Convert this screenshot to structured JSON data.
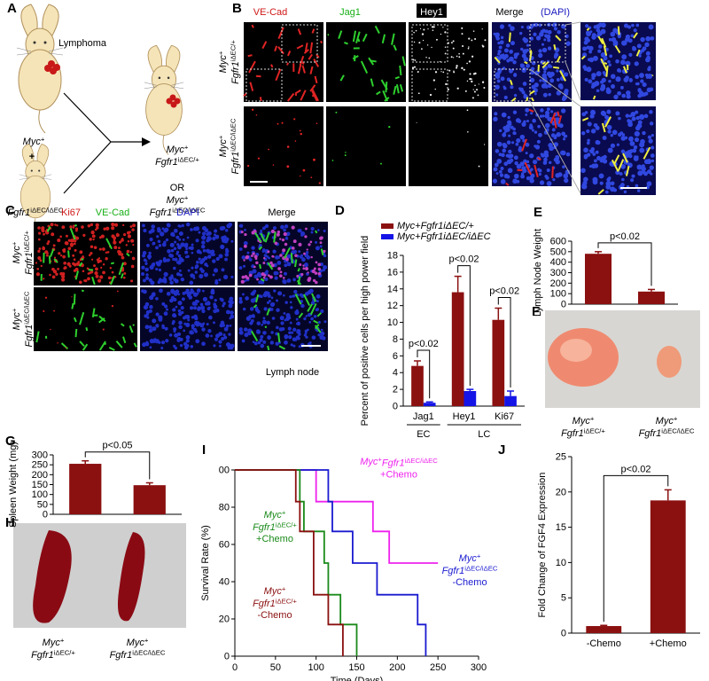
{
  "panel_labels": [
    "A",
    "B",
    "C",
    "D",
    "E",
    "F",
    "G",
    "H",
    "I",
    "J"
  ],
  "panel_a": {
    "tumor_label": "Lymphoma",
    "parent1": {
      "gene1": "Myc",
      "sup1": "+"
    },
    "plus": "+",
    "parent2": {
      "gene1": "Fgfr1",
      "sup1": "iΔEC/iΔEC"
    },
    "offspring1": {
      "gene1": "Myc",
      "sup1": "+",
      "gene2": "Fgfr1",
      "sup2": "iΔEC/+"
    },
    "or": "OR",
    "offspring2": {
      "gene1": "Myc",
      "sup1": "+",
      "gene2": "Fgfr1",
      "sup2": "iΔEC/iΔEC"
    }
  },
  "panel_b": {
    "headers": [
      "VE-Cad",
      "Jag1",
      "Hey1",
      "Merge"
    ],
    "dapi": "(DAPI)",
    "rows": [
      {
        "gene1": "Myc",
        "sup1": "+",
        "gene2": "Fgfr1",
        "sup2": "iΔEC/+"
      },
      {
        "gene1": "Myc",
        "sup1": "+",
        "gene2": "Fgfr1",
        "sup2": "iΔEC/iΔEC"
      }
    ]
  },
  "panel_c": {
    "headers": [
      "Ki67",
      "VE-Cad",
      "DAPI",
      "Merge"
    ],
    "rows": [
      {
        "gene1": "Myc",
        "sup1": "+",
        "gene2": "Fgfr1",
        "sup2": "iΔEC/+"
      },
      {
        "gene1": "Myc",
        "sup1": "+",
        "gene2": "Fgfr1",
        "sup2": "iΔEC/iΔEC"
      }
    ],
    "caption": "Lymph node"
  },
  "panel_f": {
    "labels": [
      {
        "gene1": "Myc",
        "sup1": "+",
        "gene2": "Fgfr1",
        "sup2": "iΔEC/+"
      },
      {
        "gene1": "Myc",
        "sup1": "+",
        "gene2": "Fgfr1",
        "sup2": "iΔEC/iΔEC"
      }
    ]
  },
  "panel_h": {
    "labels": [
      {
        "gene1": "Myc",
        "sup1": "+",
        "gene2": "Fgfr1",
        "sup2": "iΔEC/+"
      },
      {
        "gene1": "Myc",
        "sup1": "+",
        "gene2": "Fgfr1",
        "sup2": "iΔEC/iΔEC"
      }
    ]
  },
  "chart_data": [
    {
      "type": "bar",
      "ylabel": "Percent of positive cells per high power field",
      "categories": [
        "Jag1",
        "Hey1",
        "Ki67"
      ],
      "groups": [
        {
          "label": "EC",
          "count": 1
        },
        {
          "label": "LC",
          "count": 2
        }
      ],
      "series": [
        {
          "name": "Myc+Fgfr1iΔEC/+",
          "color": "#8b1010",
          "values": [
            4.8,
            13.6,
            10.3
          ],
          "errors": [
            0.6,
            1.9,
            1.4
          ]
        },
        {
          "name": "Myc+Fgfr1iΔEC/iΔEC",
          "color": "#1414e6",
          "values": [
            0.4,
            1.8,
            1.2
          ],
          "errors": [
            0.1,
            0.2,
            0.6
          ]
        }
      ],
      "annotations": [
        {
          "text": "p<0.02",
          "category": 0
        },
        {
          "text": "p<0.02",
          "category": 1
        },
        {
          "text": "p<0.02",
          "category": 2
        }
      ],
      "ylim": [
        0,
        18
      ],
      "yticks": [
        0,
        2,
        4,
        6,
        8,
        10,
        12,
        14,
        16,
        18
      ]
    },
    {
      "type": "bar",
      "ylabel": "Lymph Node Weight",
      "categories": [
        null,
        null
      ],
      "values": [
        480,
        120
      ],
      "errors": [
        20,
        20
      ],
      "color": "#8b1010",
      "annotations": [
        {
          "text": "p<0.02",
          "from": 0,
          "to": 1
        }
      ],
      "ylim": [
        0,
        600
      ],
      "yticks": [
        0,
        100,
        200,
        300,
        400,
        500,
        600
      ]
    },
    {
      "type": "bar",
      "ylabel": "Spleen Weight (mg)",
      "categories": [
        null,
        null
      ],
      "values": [
        255,
        147
      ],
      "errors": [
        15,
        12
      ],
      "color": "#8b1010",
      "annotations": [
        {
          "text": "p<0.05",
          "from": 0,
          "to": 1
        }
      ],
      "ylim": [
        0,
        300
      ],
      "yticks": [
        0,
        50,
        100,
        150,
        200,
        250,
        300
      ]
    },
    {
      "type": "line",
      "xlabel": "Time (Days)",
      "ylabel": "Survival Rate (%)",
      "xlim": [
        0,
        300
      ],
      "xticks": [
        0,
        50,
        100,
        150,
        200,
        250,
        300
      ],
      "ylim": [
        0,
        100
      ],
      "yticks": [
        0,
        20,
        40,
        60,
        80,
        {
          "value": 100,
          "label": "00"
        }
      ],
      "series": [
        {
          "color": "#ee22ee",
          "label": {
            "gene1": "Myc",
            "sup1": "+",
            "gene2": "Fgfr1",
            "sup2": "iΔEC/iΔEC",
            "treatment": "+Chemo"
          },
          "x": [
            0,
            100,
            100,
            170,
            170,
            190,
            190,
            250
          ],
          "values": [
            100,
            100,
            83,
            83,
            67,
            67,
            50,
            50
          ]
        },
        {
          "color": "#1a1ad0",
          "label": {
            "gene1": "Myc",
            "sup1": "+",
            "gene2": "Fgfr1",
            "sup2": "iΔEC/iΔEC",
            "treatment": "-Chemo"
          },
          "x": [
            0,
            115,
            115,
            120,
            120,
            145,
            145,
            175,
            175,
            225,
            225,
            235,
            235
          ],
          "values": [
            100,
            100,
            83,
            83,
            67,
            67,
            50,
            50,
            33,
            33,
            17,
            17,
            0
          ]
        },
        {
          "color": "#1a8a1a",
          "label": {
            "gene1": "Myc",
            "sup1": "+",
            "gene2": "Fgfr1",
            "sup2": "iΔEC/+",
            "treatment": "+Chemo"
          },
          "x": [
            0,
            80,
            80,
            85,
            85,
            110,
            110,
            115,
            115,
            130,
            130,
            150,
            150
          ],
          "values": [
            100,
            100,
            83,
            83,
            67,
            67,
            50,
            50,
            33,
            33,
            17,
            17,
            0
          ]
        },
        {
          "color": "#8b1010",
          "label": {
            "gene1": "Myc",
            "sup1": "+",
            "gene2": "Fgfr1",
            "sup2": "iΔEC/+",
            "treatment": "-Chemo"
          },
          "x": [
            0,
            75,
            75,
            80,
            80,
            97,
            97,
            115,
            115,
            133,
            133
          ],
          "values": [
            100,
            100,
            83,
            83,
            67,
            67,
            33,
            33,
            17,
            17,
            0
          ]
        }
      ]
    },
    {
      "type": "bar",
      "ylabel": "Fold Change of FGF4 Expression",
      "categories": [
        "-Chemo",
        "+Chemo"
      ],
      "values": [
        1.0,
        18.8
      ],
      "errors": [
        0.1,
        1.5
      ],
      "color": "#8b1010",
      "annotations": [
        {
          "text": "p<0.02",
          "from": 0,
          "to": 1
        }
      ],
      "ylim": [
        0,
        25
      ],
      "yticks": [
        0,
        5,
        10,
        15,
        20,
        25
      ]
    }
  ]
}
